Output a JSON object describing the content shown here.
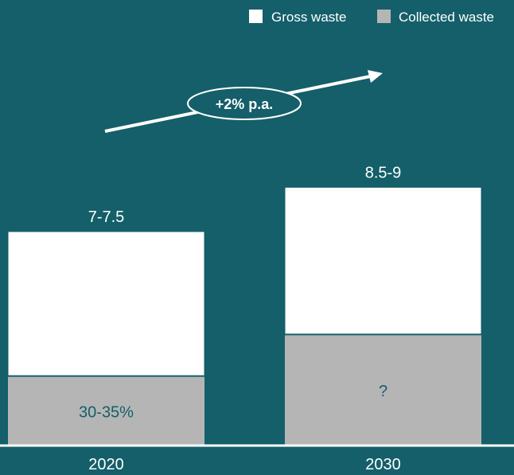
{
  "chart_data": {
    "type": "bar",
    "stacked": true,
    "categories": [
      "2020",
      "2030"
    ],
    "series": [
      {
        "name": "Gross waste",
        "color": "#ffffff",
        "total_labels": [
          "7-7.5",
          "8.5-9"
        ]
      },
      {
        "name": "Collected waste",
        "color": "#b5b5b5",
        "labels": [
          "30-35%",
          "?"
        ]
      }
    ],
    "totals_estimate": [
      7.25,
      8.75
    ],
    "collected_share_estimate": [
      0.325,
      0.43
    ],
    "annotation": "+2% p.a.",
    "legend": {
      "position": "top-right",
      "items": [
        {
          "label": "Gross waste",
          "color": "#ffffff"
        },
        {
          "label": "Collected waste",
          "color": "#b5b5b5"
        }
      ]
    }
  },
  "colors": {
    "background": "#145f69",
    "gross": "#ffffff",
    "collected": "#b5b5b5",
    "text_light": "#ffffff",
    "text_dark": "#145f69"
  }
}
